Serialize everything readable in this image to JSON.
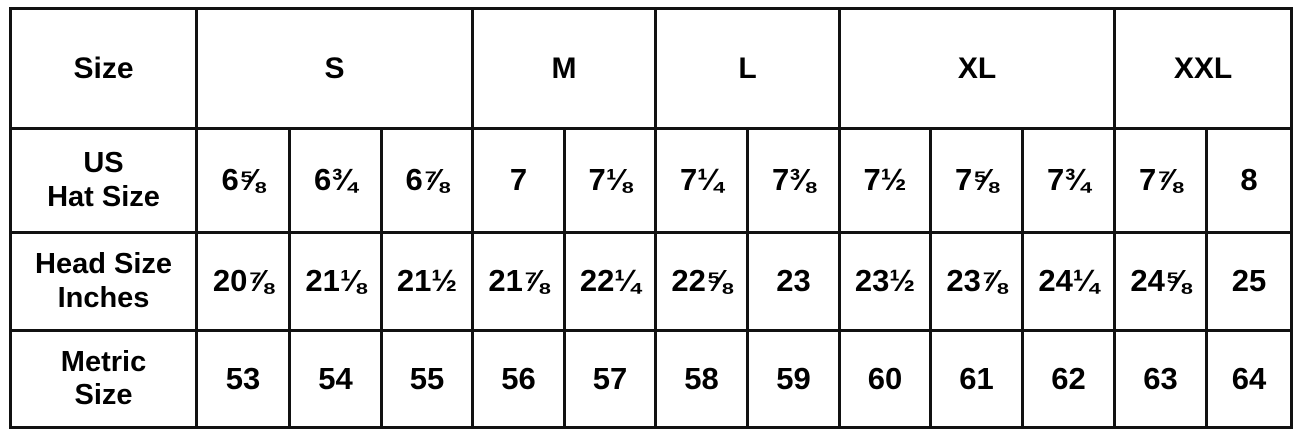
{
  "header": {
    "label": "Size",
    "groups": [
      {
        "label": "S",
        "span": 3
      },
      {
        "label": "M",
        "span": 2
      },
      {
        "label": "L",
        "span": 2
      },
      {
        "label": "XL",
        "span": 3
      },
      {
        "label": "XXL",
        "span": 2
      }
    ]
  },
  "rows": [
    {
      "label": [
        "US",
        "Hat Size"
      ],
      "values": [
        "6⅝",
        "6¾",
        "6⅞",
        "7",
        "7⅛",
        "7¼",
        "7⅜",
        "7½",
        "7⅝",
        "7¾",
        "7⅞",
        "8"
      ]
    },
    {
      "label": [
        "Head Size",
        "Inches"
      ],
      "values": [
        "20⅞",
        "21⅛",
        "21½",
        "21⅞",
        "22¼",
        "22⅝",
        "23",
        "23½",
        "23⅞",
        "24¼",
        "24⅝",
        "25"
      ]
    },
    {
      "label": [
        "Metric",
        "Size"
      ],
      "values": [
        "53",
        "54",
        "55",
        "56",
        "57",
        "58",
        "59",
        "60",
        "61",
        "62",
        "63",
        "64"
      ]
    }
  ]
}
